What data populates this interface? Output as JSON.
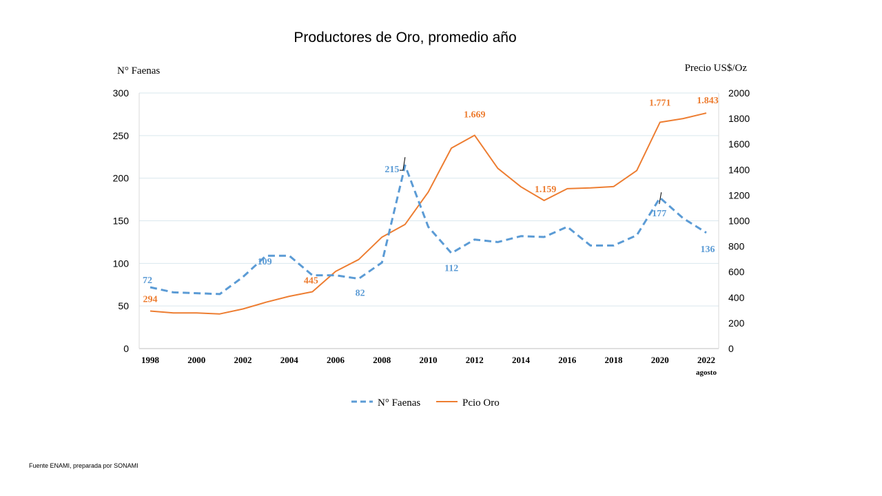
{
  "title": "Productores de Oro,  promedio año",
  "source": "Fuente ENAMI, preparada por SONAMI",
  "chart_data": {
    "type": "line",
    "title": "Productores de Oro,  promedio año",
    "y_left_label": "N° Faenas",
    "y_right_label": "Precio  US$/Oz",
    "y_left_lim": [
      0,
      300
    ],
    "y_left_ticks": [
      "0",
      "50",
      "100",
      "150",
      "200",
      "250",
      "300"
    ],
    "y_right_lim": [
      0,
      2000
    ],
    "y_right_ticks": [
      "0",
      "200",
      "400",
      "600",
      "800",
      "1000",
      "1200",
      "1400",
      "1600",
      "1800",
      "2000"
    ],
    "x": [
      1998,
      1999,
      2000,
      2001,
      2002,
      2003,
      2004,
      2005,
      2006,
      2007,
      2008,
      2009,
      2010,
      2011,
      2012,
      2013,
      2014,
      2015,
      2016,
      2017,
      2018,
      2019,
      2020,
      2021,
      2022
    ],
    "x_tick_labels": [
      "1998",
      "2000",
      "2002",
      "2004",
      "2006",
      "2008",
      "2010",
      "2012",
      "2014",
      "2016",
      "2018",
      "2020",
      "2022"
    ],
    "x_last_sublabel": "agosto",
    "grid": "horizontal",
    "legend_position": "bottom",
    "series": [
      {
        "name": "N° Faenas",
        "axis": "left",
        "style": "dashed",
        "color": "#5B9BD5",
        "values": [
          72,
          66,
          65,
          64,
          84,
          109,
          109,
          86,
          86,
          82,
          101,
          215,
          143,
          112,
          128,
          125,
          132,
          131,
          143,
          121,
          121,
          133,
          177,
          153,
          136
        ],
        "labels": [
          {
            "year": 1998,
            "text": "72"
          },
          {
            "year": 2003,
            "text": "109"
          },
          {
            "year": 2007,
            "text": "82"
          },
          {
            "year": 2009,
            "text": "215"
          },
          {
            "year": 2011,
            "text": "112"
          },
          {
            "year": 2020,
            "text": "177"
          },
          {
            "year": 2022,
            "text": "136"
          }
        ]
      },
      {
        "name": "Pcio Oro",
        "axis": "right",
        "style": "solid",
        "color": "#ED7D31",
        "values": [
          294,
          279,
          279,
          271,
          310,
          363,
          409,
          445,
          604,
          697,
          872,
          972,
          1225,
          1569,
          1669,
          1411,
          1266,
          1159,
          1251,
          1257,
          1268,
          1393,
          1771,
          1800,
          1843
        ],
        "labels": [
          {
            "year": 1998,
            "text": "294"
          },
          {
            "year": 2005,
            "text": "445"
          },
          {
            "year": 2012,
            "text": "1.669"
          },
          {
            "year": 2015,
            "text": "1.159"
          },
          {
            "year": 2020,
            "text": "1.771"
          },
          {
            "year": 2022,
            "text": "1.843"
          }
        ]
      }
    ]
  }
}
